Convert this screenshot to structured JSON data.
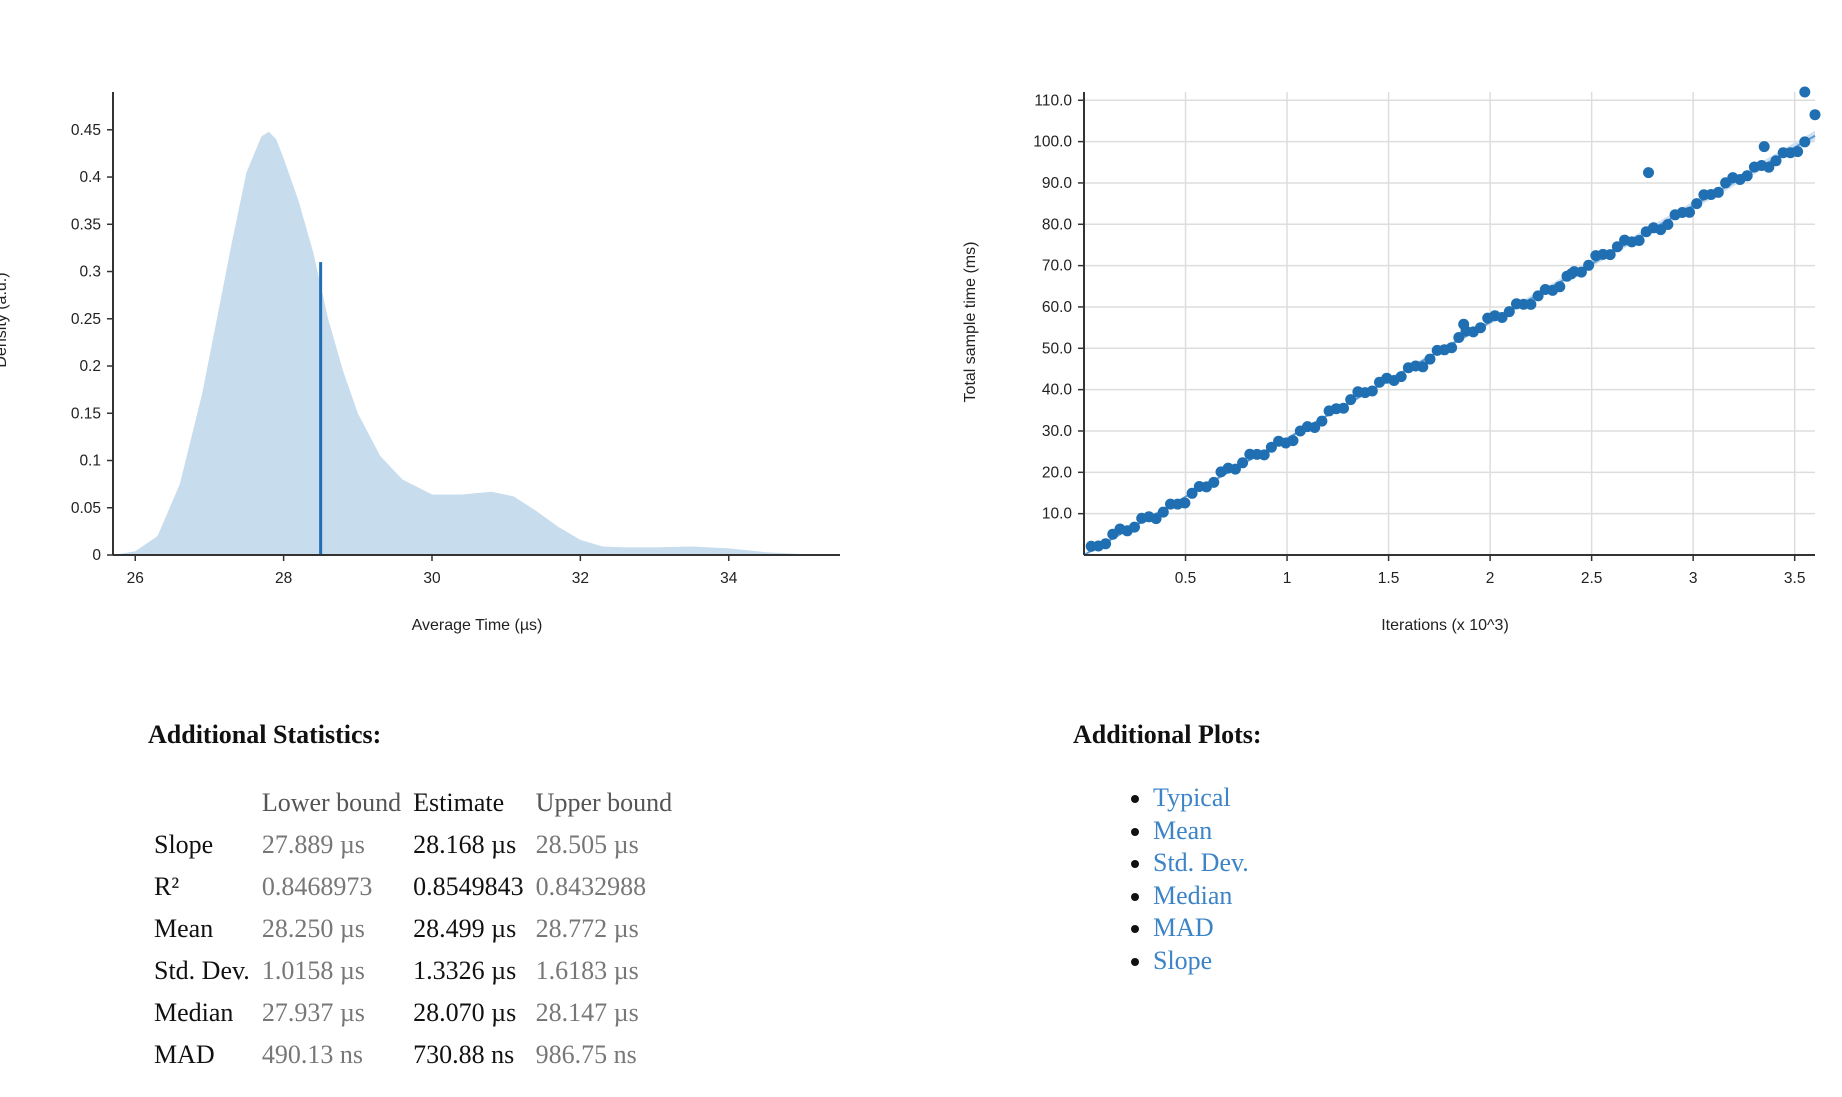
{
  "chart_data": [
    {
      "type": "area",
      "xlabel": "Average Time (µs)",
      "ylabel": "Density (a.u.)",
      "xlim": [
        25.7,
        35.5
      ],
      "ylim": [
        0,
        0.49
      ],
      "x_ticks": [
        "26",
        "28",
        "30",
        "32",
        "34"
      ],
      "y_ticks": [
        "0",
        "0.05",
        "0.1",
        "0.15",
        "0.2",
        "0.25",
        "0.3",
        "0.35",
        "0.4",
        "0.45"
      ],
      "series": [
        {
          "x": [
            25.7,
            26.0,
            26.3,
            26.6,
            26.9,
            27.1,
            27.3,
            27.5,
            27.7,
            27.8,
            27.9,
            28.0,
            28.2,
            28.4,
            28.6,
            28.8,
            29.0,
            29.3,
            29.6,
            30.0,
            30.4,
            30.8,
            31.1,
            31.4,
            31.7,
            32.0,
            32.3,
            32.6,
            33.0,
            33.5,
            34.0,
            34.5,
            35.0,
            35.5
          ],
          "y": [
            0.0,
            0.004,
            0.02,
            0.075,
            0.17,
            0.25,
            0.33,
            0.405,
            0.443,
            0.448,
            0.44,
            0.42,
            0.375,
            0.32,
            0.25,
            0.195,
            0.15,
            0.105,
            0.08,
            0.064,
            0.064,
            0.067,
            0.062,
            0.047,
            0.03,
            0.016,
            0.009,
            0.008,
            0.008,
            0.009,
            0.007,
            0.003,
            0.001,
            0.0
          ]
        }
      ],
      "mean_line": {
        "x": 28.499,
        "y": 0.31
      },
      "colors": {
        "fill": "#c7dced",
        "line": "#1f6fb2",
        "axis": "#333333"
      }
    },
    {
      "type": "scatter",
      "xlabel": "Iterations (x 10^3)",
      "ylabel": "Total sample time (ms)",
      "xlim": [
        0.0,
        3.6
      ],
      "ylim": [
        0,
        112
      ],
      "x_ticks": [
        "0.5",
        "1",
        "1.5",
        "2",
        "2.5",
        "3",
        "3.5"
      ],
      "y_ticks": [
        "10.0",
        "20.0",
        "30.0",
        "40.0",
        "50.0",
        "60.0",
        "70.0",
        "80.0",
        "90.0",
        "100.0",
        "110.0"
      ],
      "grid": true,
      "slope_ms_per_kiter": 28.168,
      "outliers": [
        [
          2.78,
          92.5
        ],
        [
          3.35,
          98.8
        ],
        [
          3.55,
          112.0
        ],
        [
          3.6,
          106.5
        ],
        [
          1.87,
          55.8
        ],
        [
          2.4,
          68.0
        ]
      ],
      "colors": {
        "points": "#1f6fb2",
        "line": "#5b9bd5",
        "band": "#cfe0f0",
        "grid": "#dddddd",
        "axis": "#333333"
      }
    }
  ],
  "stats": {
    "title": "Additional Statistics:",
    "headers": [
      "",
      "Lower bound",
      "Estimate",
      "Upper bound"
    ],
    "rows": [
      {
        "name": "Slope",
        "lower": "27.889 µs",
        "estimate": "28.168 µs",
        "upper": "28.505 µs"
      },
      {
        "name": "R²",
        "lower": "0.8468973",
        "estimate": "0.8549843",
        "upper": "0.8432988"
      },
      {
        "name": "Mean",
        "lower": "28.250 µs",
        "estimate": "28.499 µs",
        "upper": "28.772 µs"
      },
      {
        "name": "Std. Dev.",
        "lower": "1.0158 µs",
        "estimate": "1.3326 µs",
        "upper": "1.6183 µs"
      },
      {
        "name": "Median",
        "lower": "27.937 µs",
        "estimate": "28.070 µs",
        "upper": "28.147 µs"
      },
      {
        "name": "MAD",
        "lower": "490.13 ns",
        "estimate": "730.88 ns",
        "upper": "986.75 ns"
      }
    ]
  },
  "plots": {
    "title": "Additional Plots:",
    "links": [
      "Typical",
      "Mean",
      "Std. Dev.",
      "Median",
      "MAD",
      "Slope"
    ]
  }
}
